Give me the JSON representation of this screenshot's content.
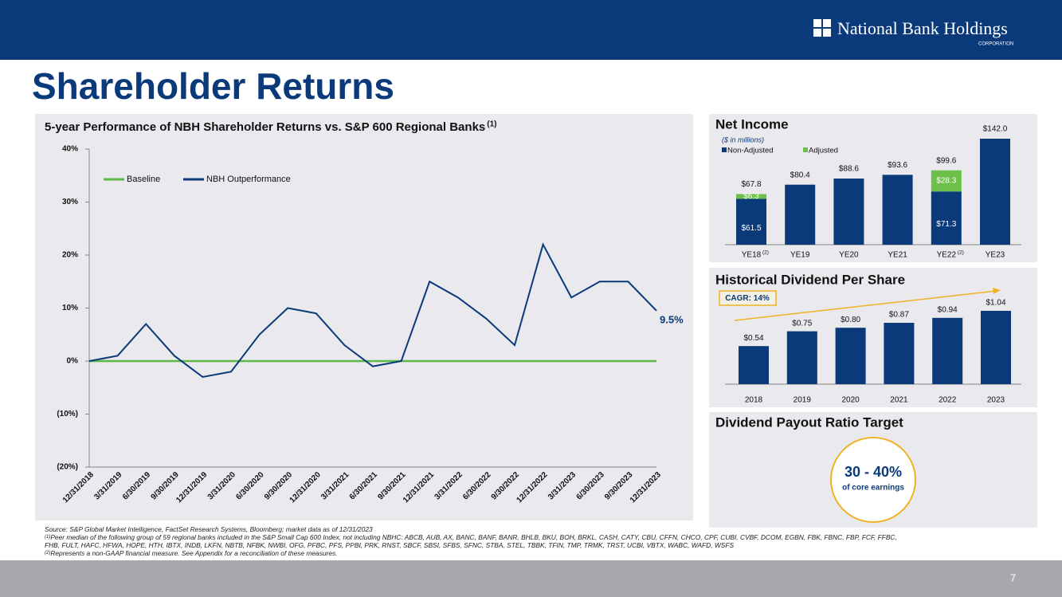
{
  "header": {
    "logo": "National Bank Holdings",
    "logo_sub": "CORPORATION"
  },
  "title": "Shareholder Returns",
  "chart_data": [
    {
      "type": "line",
      "title": "5-year Performance of NBH Shareholder Returns vs. S&P 600 Regional Banks",
      "title_note": "(1)",
      "categories": [
        "12/31/2018",
        "3/31/2019",
        "6/30/2019",
        "9/30/2019",
        "12/31/2019",
        "3/31/2020",
        "6/30/2020",
        "9/30/2020",
        "12/31/2020",
        "3/31/2021",
        "6/30/2021",
        "9/30/2021",
        "12/31/2021",
        "3/31/2022",
        "6/30/2022",
        "9/30/2022",
        "12/31/2022",
        "3/31/2023",
        "6/30/2023",
        "9/30/2023",
        "12/31/2023"
      ],
      "series": [
        {
          "name": "Baseline",
          "color": "#5cb947",
          "values": [
            0,
            0,
            0,
            0,
            0,
            0,
            0,
            0,
            0,
            0,
            0,
            0,
            0,
            0,
            0,
            0,
            0,
            0,
            0,
            0,
            0
          ]
        },
        {
          "name": "NBH Outperformance",
          "color": "#0b3a7a",
          "values": [
            0,
            1,
            7,
            1,
            -3,
            -2,
            5,
            10,
            9,
            3,
            -1,
            0,
            15,
            12,
            8,
            3,
            22,
            12,
            15,
            15,
            9.5
          ]
        }
      ],
      "end_label": "9.5%",
      "ylim": [
        -20,
        40
      ],
      "yticks": [
        {
          "value": -20,
          "label": "(20%)"
        },
        {
          "value": -10,
          "label": "(10%)"
        },
        {
          "value": 0,
          "label": "0%"
        },
        {
          "value": 10,
          "label": "10%"
        },
        {
          "value": 20,
          "label": "20%"
        },
        {
          "value": 30,
          "label": "30%"
        },
        {
          "value": 40,
          "label": "40%"
        }
      ],
      "legend": "upper left"
    },
    {
      "type": "stacked-bar",
      "title": "Net Income",
      "subtitle": "($ in millions)",
      "categories": [
        "YE18",
        "YE19",
        "YE20",
        "YE21",
        "YE22",
        "YE23"
      ],
      "category_notes": [
        "(2)",
        null,
        null,
        null,
        "(2)",
        null
      ],
      "series": [
        {
          "name": "Non-Adjusted",
          "color": "#0b3a7a",
          "values": [
            61.5,
            80.4,
            88.6,
            93.6,
            71.3,
            142.0
          ],
          "value_labels": [
            "$61.5",
            "$80.4",
            "$88.6",
            "$93.6",
            "$71.3",
            "$142.0"
          ]
        },
        {
          "name": "Adjusted",
          "color": "#6cc04a",
          "values": [
            6.3,
            null,
            null,
            null,
            28.3,
            null
          ],
          "value_labels": [
            "$6.3",
            null,
            null,
            null,
            "$28.3",
            null
          ]
        }
      ],
      "total_labels": [
        {
          "value": 67.8,
          "label": "$67.8"
        },
        null,
        null,
        null,
        {
          "value": 99.6,
          "label": "$99.6"
        },
        null
      ],
      "ylim": [
        0,
        150
      ]
    },
    {
      "type": "bar",
      "title": "Historical Dividend Per Share",
      "categories": [
        "2018",
        "2019",
        "2020",
        "2021",
        "2022",
        "2023"
      ],
      "values": [
        0.54,
        0.75,
        0.8,
        0.87,
        0.94,
        1.04
      ],
      "value_labels": [
        "$0.54",
        "$0.75",
        "$0.80",
        "$0.87",
        "$0.94",
        "$1.04"
      ],
      "color": "#0b3a7a",
      "annotation": "CAGR: 14%",
      "ylim": [
        0,
        1.2
      ]
    }
  ],
  "payout": {
    "title": "Dividend Payout Ratio Target",
    "value": "30 - 40%",
    "caption": "of core earnings"
  },
  "footnotes": [
    {
      "text": "Source: S&P Global Market Intelligence, FactSet Research Systems, Bloomberg; market data as of 12/31/2023"
    },
    {
      "mark": "(1)",
      "text": "Peer median of the following group of 59 regional banks included in the S&P Small Cap 600 Index, not including NBHC: ABCB, AUB, AX, BANC, BANF, BANR, BHLB, BKU, BOH, BRKL, CASH, CATY, CBU, CFFN, CHCO, CPF, CUBI, CVBF, DCOM, EGBN, FBK, FBNC, FBP, FCF, FFBC, FHB, FULT, HAFC, HFWA, HOPE, HTH, IBTX, INDB, LKFN, NBTB, NFBK, NWBI, OFG, PFBC, PFS, PPBI, PRK, RNST, SBCF, SBSI, SFBS, SFNC, STBA, STEL, TBBK, TFIN, TMP, TRMK, TRST, UCBI, VBTX, WABC, WAFD, WSFS"
    },
    {
      "mark": "(2)",
      "text": "Represents a non-GAAP financial measure.  See Appendix for a reconciliation of these measures."
    }
  ],
  "page_number": "7"
}
